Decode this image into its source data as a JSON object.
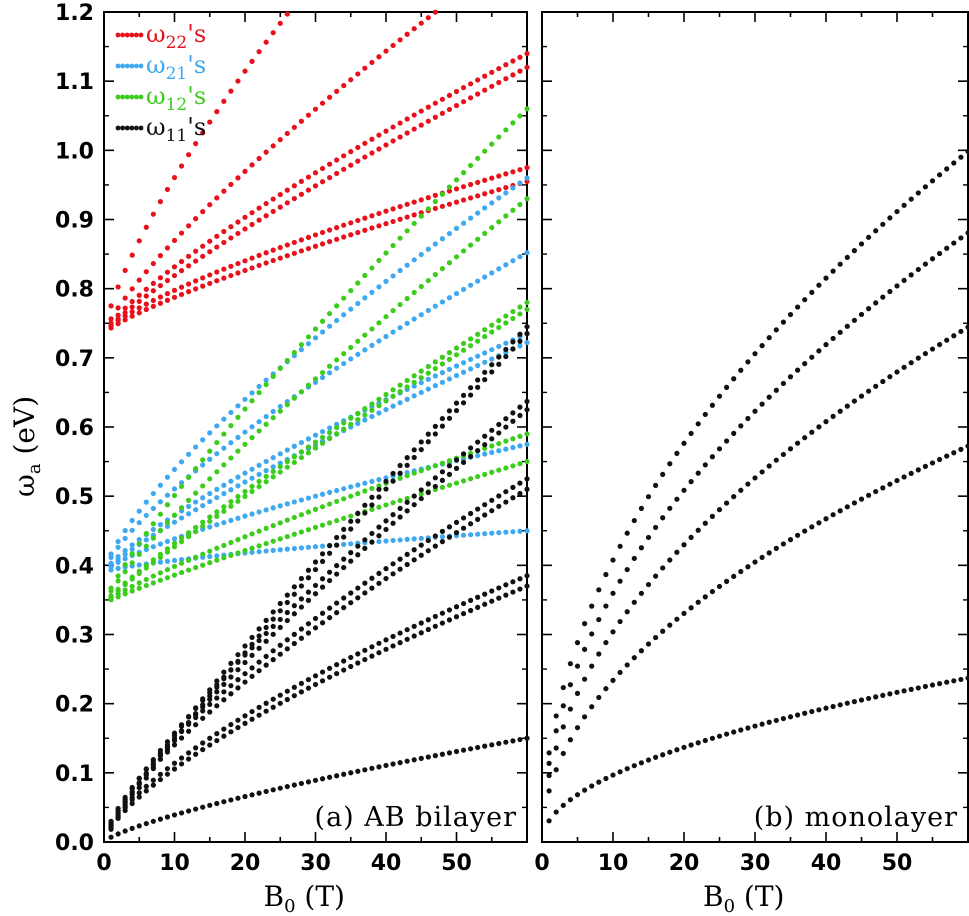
{
  "chart_data": [
    {
      "type": "scatter",
      "panel_label": "(a)  AB  bilayer",
      "xlabel": "B",
      "xlabel_sub": "0",
      "xlabel_unit": "(T)",
      "ylabel": "ω",
      "ylabel_sub": "a",
      "ylabel_unit": "(eV)",
      "xlim": [
        0,
        60
      ],
      "ylim": [
        0.0,
        1.2
      ],
      "xticks": [
        "0",
        "10",
        "20",
        "30",
        "40",
        "50"
      ],
      "xtick_values": [
        0,
        10,
        20,
        30,
        40,
        50
      ],
      "yticks": [
        "0.0",
        "0.1",
        "0.2",
        "0.3",
        "0.4",
        "0.5",
        "0.6",
        "0.7",
        "0.8",
        "0.9",
        "1.0",
        "1.1",
        "1.2"
      ],
      "ytick_values": [
        0.0,
        0.1,
        0.2,
        0.3,
        0.4,
        0.5,
        0.6,
        0.7,
        0.8,
        0.9,
        1.0,
        1.1,
        1.2
      ],
      "legend": [
        {
          "label": "ω",
          "sub": "22",
          "suffix": "'s",
          "color": "#e8101a"
        },
        {
          "label": "ω",
          "sub": "21",
          "suffix": "'s",
          "color": "#3ea9f0"
        },
        {
          "label": "ω",
          "sub": "12",
          "suffix": "'s",
          "color": "#3ccc1c"
        },
        {
          "label": "ω",
          "sub": "11",
          "suffix": "'s",
          "color": "#111111"
        }
      ],
      "series": [
        {
          "name": "ω22 curve 1",
          "color": "#e8101a",
          "y0": 0.735,
          "y60": 1.6,
          "p": 0.75
        },
        {
          "name": "ω22 curve 2",
          "color": "#e8101a",
          "y0": 0.735,
          "y60": 1.3,
          "p": 0.8
        },
        {
          "name": "ω22 curve 3",
          "color": "#e8101a",
          "y0": 0.735,
          "y60": 1.14,
          "p": 0.8
        },
        {
          "name": "ω22 curve 4",
          "color": "#e8101a",
          "y0": 0.735,
          "y60": 1.12,
          "p": 0.85
        },
        {
          "name": "ω22 curve 5",
          "color": "#e8101a",
          "y0": 0.735,
          "y60": 0.975,
          "p": 0.75
        },
        {
          "name": "ω22 curve 6",
          "color": "#e8101a",
          "y0": 0.735,
          "y60": 0.955,
          "p": 0.8
        },
        {
          "name": "ω21 curve 1",
          "color": "#3ea9f0",
          "y0": 0.39,
          "y60": 0.96,
          "p": 0.75
        },
        {
          "name": "ω21 curve 2",
          "color": "#3ea9f0",
          "y0": 0.39,
          "y60": 0.852,
          "p": 0.75
        },
        {
          "name": "ω21 curve 3",
          "color": "#3ea9f0",
          "y0": 0.39,
          "y60": 0.735,
          "p": 0.8
        },
        {
          "name": "ω21 curve 4",
          "color": "#3ea9f0",
          "y0": 0.39,
          "y60": 0.722,
          "p": 0.85
        },
        {
          "name": "ω21 curve 5",
          "color": "#3ea9f0",
          "y0": 0.39,
          "y60": 0.575,
          "p": 0.75
        },
        {
          "name": "ω21 curve 6",
          "color": "#3ea9f0",
          "y0": 0.39,
          "y60": 0.45,
          "p": 0.7
        },
        {
          "name": "ω12 curve 1",
          "color": "#3ccc1c",
          "y0": 0.345,
          "y60": 1.06,
          "p": 0.85
        },
        {
          "name": "ω12 curve 2",
          "color": "#3ccc1c",
          "y0": 0.345,
          "y60": 0.93,
          "p": 0.85
        },
        {
          "name": "ω12 curve 3",
          "color": "#3ccc1c",
          "y0": 0.345,
          "y60": 0.78,
          "p": 0.9
        },
        {
          "name": "ω12 curve 4",
          "color": "#3ccc1c",
          "y0": 0.345,
          "y60": 0.77,
          "p": 0.92
        },
        {
          "name": "ω12 curve 5",
          "color": "#3ccc1c",
          "y0": 0.345,
          "y60": 0.59,
          "p": 0.85
        },
        {
          "name": "ω12 curve 6",
          "color": "#3ccc1c",
          "y0": 0.345,
          "y60": 0.55,
          "p": 0.9
        },
        {
          "name": "ω11 curve 1",
          "color": "#111111",
          "y0": 0.0,
          "y60": 0.745,
          "p": 0.88
        },
        {
          "name": "ω11 curve 2",
          "color": "#111111",
          "y0": 0.0,
          "y60": 0.735,
          "p": 0.9
        },
        {
          "name": "ω11 curve 3",
          "color": "#111111",
          "y0": 0.0,
          "y60": 0.637,
          "p": 0.78
        },
        {
          "name": "ω11 curve 4",
          "color": "#111111",
          "y0": 0.0,
          "y60": 0.625,
          "p": 0.8
        },
        {
          "name": "ω11 curve 5",
          "color": "#111111",
          "y0": 0.0,
          "y60": 0.525,
          "p": 0.7
        },
        {
          "name": "ω11 curve 6",
          "color": "#111111",
          "y0": 0.0,
          "y60": 0.51,
          "p": 0.72
        },
        {
          "name": "ω11 curve 7",
          "color": "#111111",
          "y0": 0.0,
          "y60": 0.385,
          "p": 0.68
        },
        {
          "name": "ω11 curve 8",
          "color": "#111111",
          "y0": 0.0,
          "y60": 0.37,
          "p": 0.7
        },
        {
          "name": "ω11 curve 9",
          "color": "#111111",
          "y0": 0.0,
          "y60": 0.15,
          "p": 0.75
        }
      ]
    },
    {
      "type": "scatter",
      "panel_label": "(b)  monolayer",
      "xlabel": "B",
      "xlabel_sub": "0",
      "xlabel_unit": "(T)",
      "xlim": [
        0,
        60
      ],
      "ylim": [
        0.0,
        1.2
      ],
      "xticks": [
        "0",
        "10",
        "20",
        "30",
        "40",
        "50"
      ],
      "xtick_values": [
        0,
        10,
        20,
        30,
        40,
        50
      ],
      "ytick_values": [
        0.0,
        0.1,
        0.2,
        0.3,
        0.4,
        0.5,
        0.6,
        0.7,
        0.8,
        0.9,
        1.0,
        1.1,
        1.2
      ],
      "series": [
        {
          "name": "monolayer n=1",
          "color": "#111111",
          "coef": 0.0306
        },
        {
          "name": "monolayer n=2",
          "color": "#111111",
          "coef": 0.0739
        },
        {
          "name": "monolayer n=3",
          "color": "#111111",
          "coef": 0.0961
        },
        {
          "name": "monolayer n=4",
          "color": "#111111",
          "coef": 0.1137
        },
        {
          "name": "monolayer n=5",
          "color": "#111111",
          "coef": 0.1289
        }
      ]
    }
  ]
}
